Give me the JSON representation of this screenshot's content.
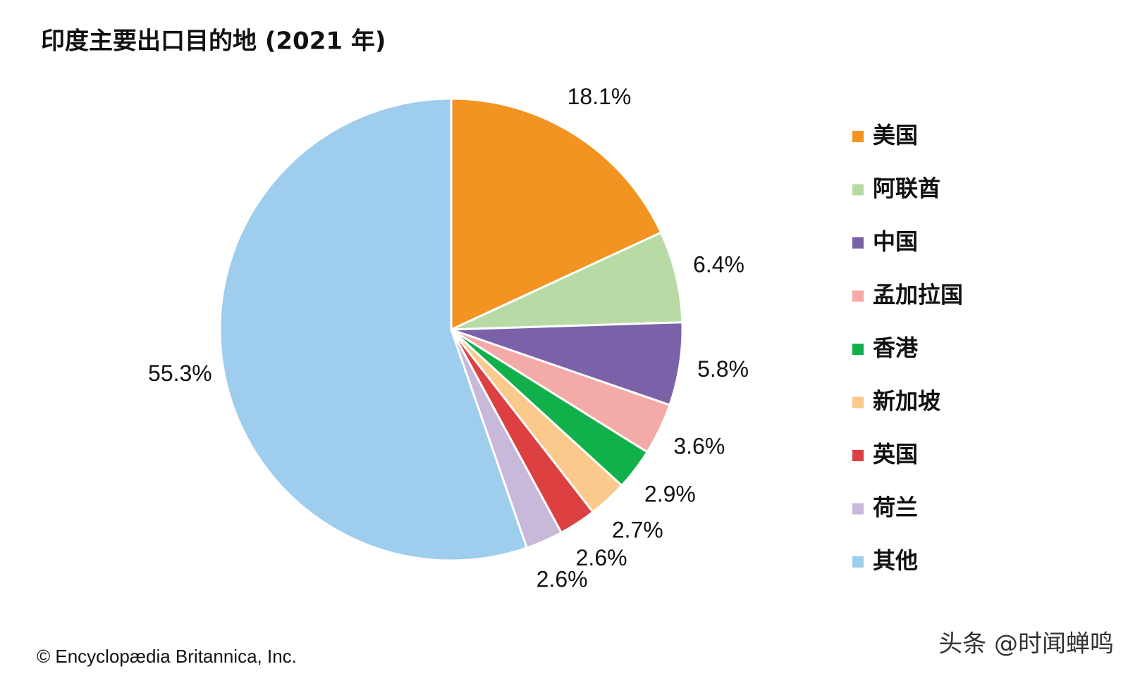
{
  "chart_data": {
    "type": "pie",
    "title": "印度主要出口目的地 (2021 年)",
    "categories": [
      "美国",
      "阿联酋",
      "中国",
      "孟加拉国",
      "香港",
      "新加坡",
      "英国",
      "荷兰",
      "其他"
    ],
    "values": [
      18.1,
      6.4,
      5.8,
      3.6,
      2.9,
      2.7,
      2.6,
      2.6,
      55.3
    ],
    "value_labels": [
      "18.1%",
      "6.4%",
      "5.8%",
      "3.6%",
      "2.9%",
      "2.7%",
      "2.6%",
      "2.6%",
      "55.3%"
    ],
    "colors": [
      "#f39321",
      "#b8dba6",
      "#7b62a8",
      "#f4aaa6",
      "#12b04b",
      "#fbc98c",
      "#dc4040",
      "#c8b8da",
      "#9ecded"
    ],
    "legend": "right",
    "credit": "© Encyclopædia Britannica, Inc.",
    "watermark": "头条 @时闻蝉鸣"
  }
}
